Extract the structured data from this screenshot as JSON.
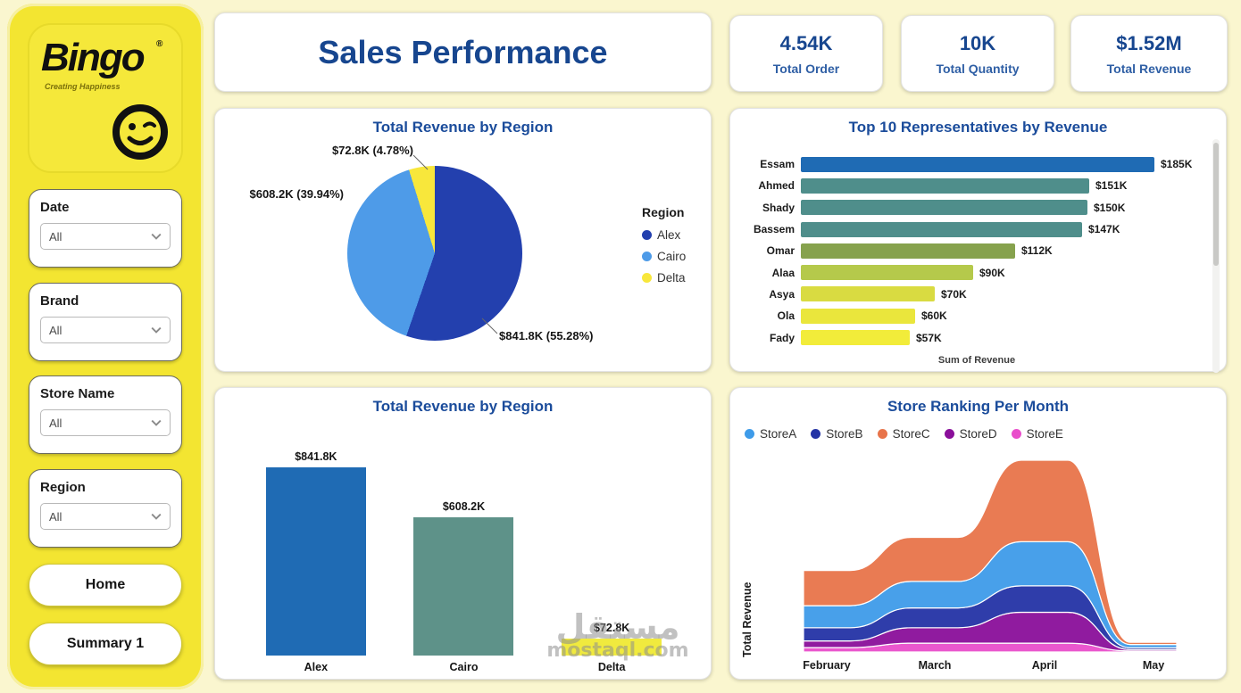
{
  "sidebar": {
    "logo": {
      "name": "Bingo",
      "registered": "®",
      "tagline": "Creating Happiness"
    },
    "filters": [
      {
        "label": "Date",
        "value": "All"
      },
      {
        "label": "Brand",
        "value": "All"
      },
      {
        "label": "Store Name",
        "value": "All"
      },
      {
        "label": "Region",
        "value": "All"
      }
    ],
    "home_button": "Home",
    "summary_button": "Summary 1"
  },
  "header": {
    "title": "Sales Performance"
  },
  "kpis": [
    {
      "value": "4.54K",
      "label": "Total Order"
    },
    {
      "value": "10K",
      "label": "Total Quantity"
    },
    {
      "value": "$1.52M",
      "label": "Total Revenue"
    }
  ],
  "chart_data": [
    {
      "type": "pie",
      "title": "Total Revenue by Region",
      "legend_title": "Region",
      "categories": [
        "Alex",
        "Cairo",
        "Delta"
      ],
      "values": [
        841.8,
        608.2,
        72.8
      ],
      "percents": [
        55.28,
        39.94,
        4.78
      ],
      "labels": [
        "$841.8K (55.28%)",
        "$608.2K (39.94%)",
        "$72.8K (4.78%)"
      ],
      "colors": [
        "#2340AE",
        "#4E9BE8",
        "#F8E73B"
      ],
      "legend_position": "right"
    },
    {
      "type": "bar",
      "orientation": "horizontal",
      "title": "Top 10 Representatives by Revenue",
      "categories": [
        "Essam",
        "Ahmed",
        "Shady",
        "Bassem",
        "Omar",
        "Alaa",
        "Asya",
        "Ola",
        "Fady"
      ],
      "values": [
        185,
        151,
        150,
        147,
        112,
        90,
        70,
        60,
        57
      ],
      "labels": [
        "$185K",
        "$151K",
        "$150K",
        "$147K",
        "$112K",
        "$90K",
        "$70K",
        "$60K",
        "$57K"
      ],
      "colors": [
        "#1F6BB4",
        "#4F8E8B",
        "#4F8E8B",
        "#4F8E8B",
        "#86A24D",
        "#B5C94B",
        "#D9DB41",
        "#EAE63C",
        "#F2EC3A"
      ],
      "xlabel": "Sum of Revenue",
      "xmax": 185
    },
    {
      "type": "bar",
      "orientation": "vertical",
      "title": "Total Revenue by Region",
      "categories": [
        "Alex",
        "Cairo",
        "Delta"
      ],
      "values": [
        841.8,
        608.2,
        72.8
      ],
      "labels": [
        "$841.8K",
        "$608.2K",
        "$72.8K"
      ],
      "colors": [
        "#1F6BB4",
        "#5E9289",
        "#F0EA3E"
      ]
    },
    {
      "type": "area",
      "variant": "ribbon",
      "title": "Store Ranking Per Month",
      "x": [
        "February",
        "March",
        "April",
        "May"
      ],
      "ylabel": "Total Revenue",
      "series": [
        {
          "name": "StoreA",
          "color": "#3E9BE9",
          "values": [
            10,
            12,
            20,
            1.5
          ]
        },
        {
          "name": "StoreB",
          "color": "#2433A5",
          "values": [
            6,
            9,
            12,
            0.8
          ]
        },
        {
          "name": "StoreC",
          "color": "#E8744A",
          "values": [
            16,
            20,
            37,
            1.0
          ]
        },
        {
          "name": "StoreD",
          "color": "#8A0F9A",
          "values": [
            3,
            7,
            14,
            0.6
          ]
        },
        {
          "name": "StoreE",
          "color": "#E94ECB",
          "values": [
            2,
            4,
            4,
            0.5
          ]
        }
      ],
      "stack_order": [
        "StoreE",
        "StoreD",
        "StoreB",
        "StoreA",
        "StoreC"
      ],
      "legend_position": "top"
    }
  ],
  "watermark": {
    "text_arabic": "مستقل",
    "text_latin": "mostaql.com"
  },
  "colors": {
    "accent": "#17468F",
    "sidebar": "#F3E531",
    "background": "#FAF6CF"
  }
}
